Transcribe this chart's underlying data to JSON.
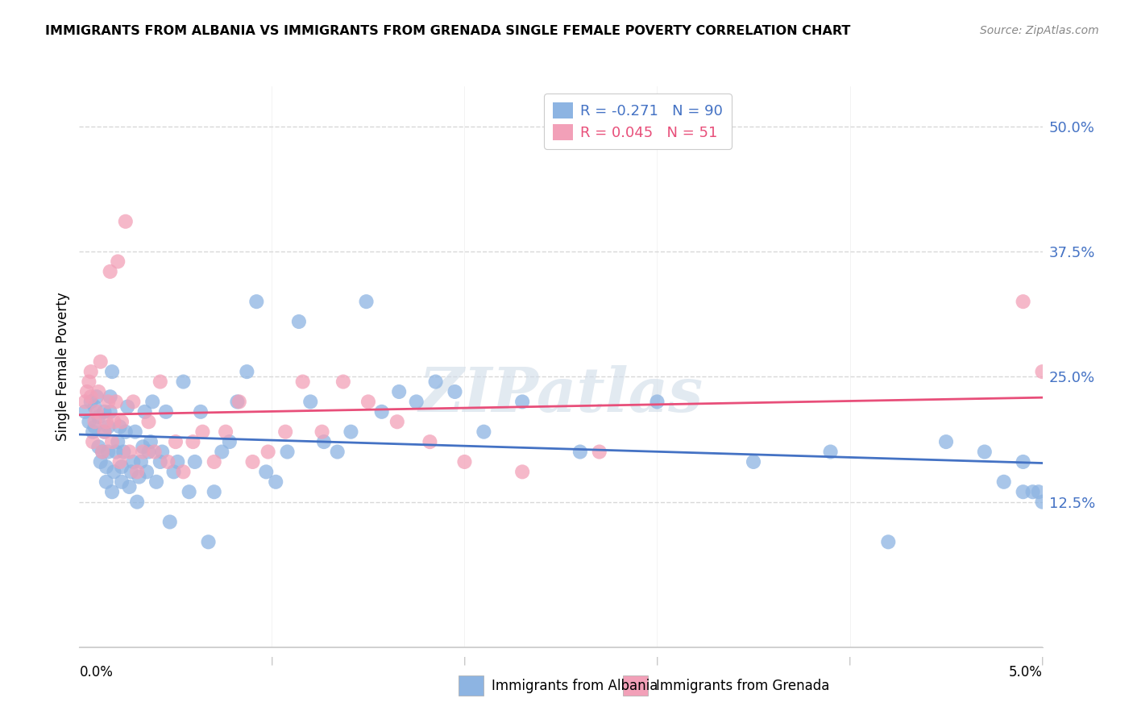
{
  "title": "IMMIGRANTS FROM ALBANIA VS IMMIGRANTS FROM GRENADA SINGLE FEMALE POVERTY CORRELATION CHART",
  "source": "Source: ZipAtlas.com",
  "ylabel": "Single Female Poverty",
  "albania_color": "#8db4e2",
  "grenada_color": "#f2a0b8",
  "albania_line_color": "#4472c4",
  "grenada_line_color": "#e84f7a",
  "albania_R": -0.271,
  "albania_N": 90,
  "grenada_R": 0.045,
  "grenada_N": 51,
  "xlim": [
    0.0,
    0.05
  ],
  "ylim": [
    -0.02,
    0.54
  ],
  "ytick_vals": [
    0.0,
    0.125,
    0.25,
    0.375,
    0.5
  ],
  "ytick_labels": [
    "",
    "12.5%",
    "25.0%",
    "37.5%",
    "50.0%"
  ],
  "grid_color": "#d8d8d8",
  "background_color": "#ffffff",
  "watermark": "ZIPatlas",
  "albania_scatter_x": [
    0.0003,
    0.0005,
    0.0006,
    0.0007,
    0.0008,
    0.0008,
    0.0009,
    0.001,
    0.001,
    0.0011,
    0.0012,
    0.0013,
    0.0013,
    0.0014,
    0.0014,
    0.0015,
    0.0015,
    0.0016,
    0.0016,
    0.0017,
    0.0017,
    0.0018,
    0.0019,
    0.002,
    0.0021,
    0.0022,
    0.0022,
    0.0023,
    0.0024,
    0.0025,
    0.0026,
    0.0027,
    0.0028,
    0.0029,
    0.003,
    0.0031,
    0.0032,
    0.0033,
    0.0034,
    0.0035,
    0.0036,
    0.0037,
    0.0038,
    0.004,
    0.0042,
    0.0043,
    0.0045,
    0.0047,
    0.0049,
    0.0051,
    0.0054,
    0.0057,
    0.006,
    0.0063,
    0.0067,
    0.007,
    0.0074,
    0.0078,
    0.0082,
    0.0087,
    0.0092,
    0.0097,
    0.0102,
    0.0108,
    0.0114,
    0.012,
    0.0127,
    0.0134,
    0.0141,
    0.0149,
    0.0157,
    0.0166,
    0.0175,
    0.0185,
    0.0195,
    0.021,
    0.023,
    0.026,
    0.03,
    0.035,
    0.039,
    0.042,
    0.045,
    0.047,
    0.048,
    0.049,
    0.049,
    0.0495,
    0.0498,
    0.05
  ],
  "albania_scatter_y": [
    0.215,
    0.205,
    0.225,
    0.195,
    0.2,
    0.22,
    0.23,
    0.18,
    0.21,
    0.165,
    0.175,
    0.195,
    0.215,
    0.145,
    0.16,
    0.175,
    0.2,
    0.215,
    0.23,
    0.255,
    0.135,
    0.155,
    0.175,
    0.185,
    0.2,
    0.145,
    0.16,
    0.175,
    0.195,
    0.22,
    0.14,
    0.155,
    0.165,
    0.195,
    0.125,
    0.15,
    0.165,
    0.18,
    0.215,
    0.155,
    0.175,
    0.185,
    0.225,
    0.145,
    0.165,
    0.175,
    0.215,
    0.105,
    0.155,
    0.165,
    0.245,
    0.135,
    0.165,
    0.215,
    0.085,
    0.135,
    0.175,
    0.185,
    0.225,
    0.255,
    0.325,
    0.155,
    0.145,
    0.175,
    0.305,
    0.225,
    0.185,
    0.175,
    0.195,
    0.325,
    0.215,
    0.235,
    0.225,
    0.245,
    0.235,
    0.195,
    0.225,
    0.175,
    0.225,
    0.165,
    0.175,
    0.085,
    0.185,
    0.175,
    0.145,
    0.165,
    0.135,
    0.135,
    0.135,
    0.125
  ],
  "grenada_scatter_x": [
    0.0003,
    0.0004,
    0.0005,
    0.0006,
    0.0006,
    0.0007,
    0.0008,
    0.0009,
    0.001,
    0.0011,
    0.0012,
    0.0013,
    0.0014,
    0.0015,
    0.0016,
    0.0017,
    0.0018,
    0.0019,
    0.002,
    0.0021,
    0.0022,
    0.0024,
    0.0026,
    0.0028,
    0.003,
    0.0033,
    0.0036,
    0.0039,
    0.0042,
    0.0046,
    0.005,
    0.0054,
    0.0059,
    0.0064,
    0.007,
    0.0076,
    0.0083,
    0.009,
    0.0098,
    0.0107,
    0.0116,
    0.0126,
    0.0137,
    0.015,
    0.0165,
    0.0182,
    0.02,
    0.023,
    0.027,
    0.049,
    0.05
  ],
  "grenada_scatter_y": [
    0.225,
    0.235,
    0.245,
    0.255,
    0.23,
    0.185,
    0.205,
    0.215,
    0.235,
    0.265,
    0.175,
    0.195,
    0.205,
    0.225,
    0.355,
    0.185,
    0.205,
    0.225,
    0.365,
    0.165,
    0.205,
    0.405,
    0.175,
    0.225,
    0.155,
    0.175,
    0.205,
    0.175,
    0.245,
    0.165,
    0.185,
    0.155,
    0.185,
    0.195,
    0.165,
    0.195,
    0.225,
    0.165,
    0.175,
    0.195,
    0.245,
    0.195,
    0.245,
    0.225,
    0.205,
    0.185,
    0.165,
    0.155,
    0.175,
    0.325,
    0.255
  ]
}
